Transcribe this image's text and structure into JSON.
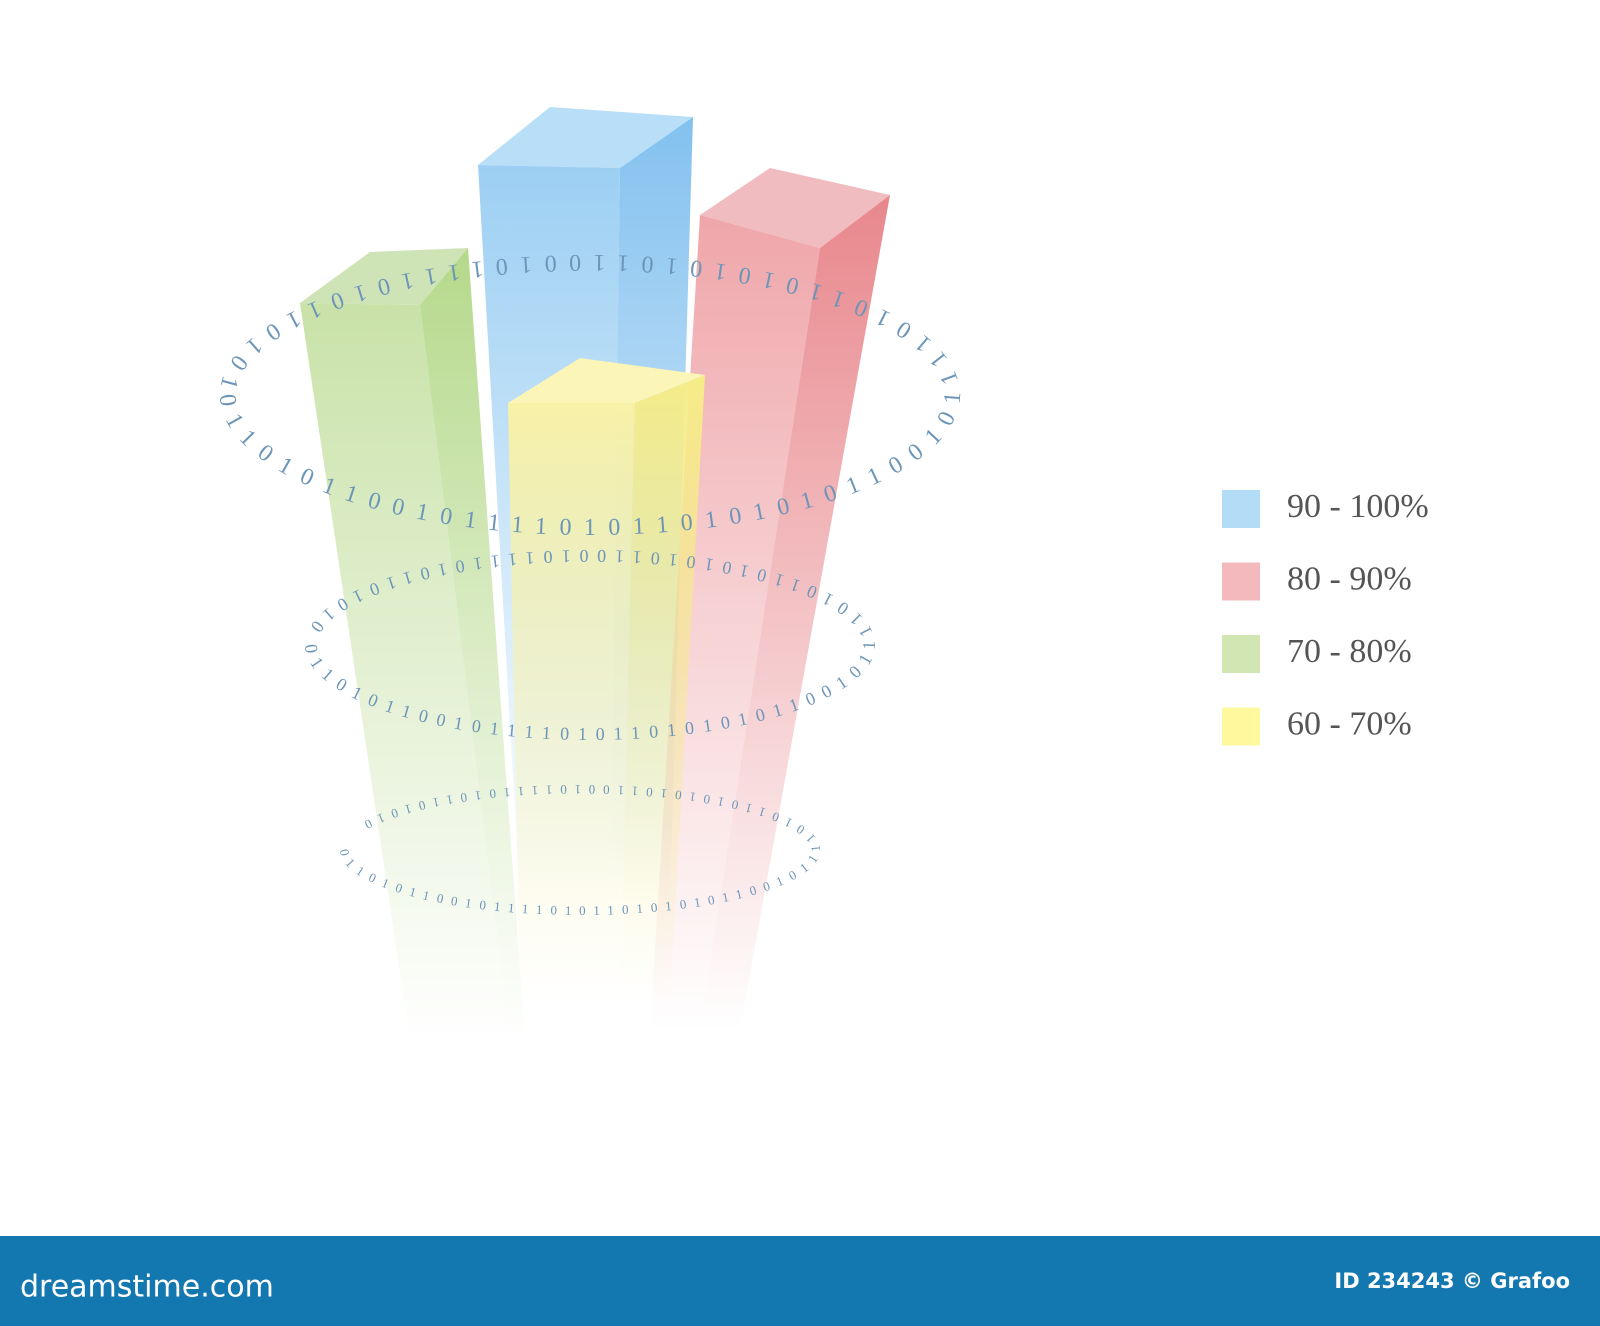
{
  "legend": {
    "items": [
      {
        "label": "90 - 100%",
        "color": "#b3dcf7"
      },
      {
        "label": "80 - 90%",
        "color": "#f3b9bd"
      },
      {
        "label": "70 - 80%",
        "color": "#d2e6b4"
      },
      {
        "label": "60 - 70%",
        "color": "#fff89c"
      }
    ]
  },
  "ring_text": "0110101100101111010110101010110010111101011010101011001011110101101010",
  "footer": {
    "site": "dreamstime.com",
    "credit": "ID 234243 © Grafoo"
  }
}
